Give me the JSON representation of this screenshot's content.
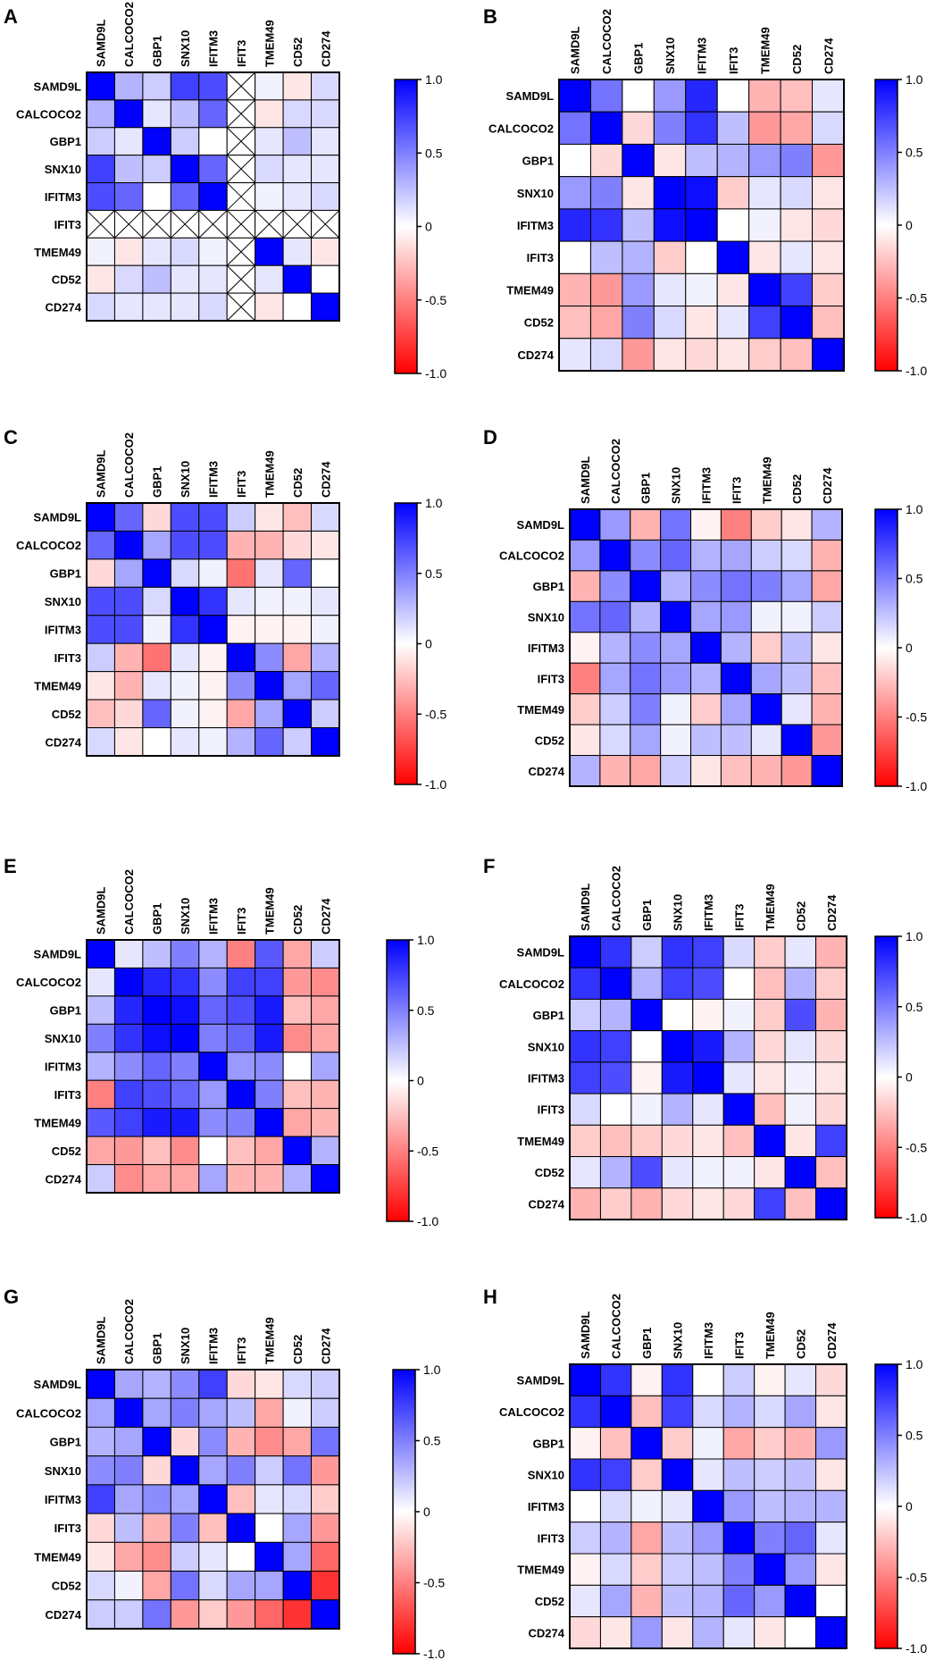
{
  "genes": [
    "SAMD9L",
    "CALCOCO2",
    "GBP1",
    "SNX10",
    "IFITM3",
    "IFIT3",
    "TMEM49",
    "CD52",
    "CD274"
  ],
  "colorbar": {
    "ticks": [
      "1.0",
      "0.5",
      "0",
      "-0.5",
      "-1.0"
    ],
    "colors": {
      "max": "#0000ff",
      "mid": "#ffffff",
      "min": "#ff0000"
    }
  },
  "chart_data": [
    {
      "type": "heatmap",
      "panel": "A",
      "rows": [
        "SAMD9L",
        "CALCOCO2",
        "GBP1",
        "SNX10",
        "IFITM3",
        "IFIT3",
        "TMEM49",
        "CD52",
        "CD274"
      ],
      "columns": [
        "SAMD9L",
        "CALCOCO2",
        "GBP1",
        "SNX10",
        "IFITM3",
        "IFIT3",
        "TMEM49",
        "CD52",
        "CD274"
      ],
      "missing": "IFIT3",
      "values": [
        [
          1.0,
          0.3,
          0.2,
          0.75,
          0.7,
          null,
          0.05,
          -0.1,
          0.15
        ],
        [
          0.3,
          1.0,
          0.1,
          0.25,
          0.6,
          null,
          -0.1,
          0.15,
          0.15
        ],
        [
          0.2,
          0.1,
          1.0,
          0.2,
          0.0,
          null,
          0.1,
          0.25,
          0.1
        ],
        [
          0.75,
          0.25,
          0.2,
          1.0,
          0.6,
          null,
          0.15,
          0.1,
          0.1
        ],
        [
          0.7,
          0.6,
          0.0,
          0.6,
          1.0,
          null,
          0.05,
          0.1,
          0.15
        ],
        [
          null,
          null,
          null,
          null,
          null,
          null,
          null,
          null,
          null
        ],
        [
          0.05,
          -0.1,
          0.1,
          0.15,
          0.05,
          null,
          1.0,
          0.1,
          -0.1
        ],
        [
          -0.1,
          0.15,
          0.25,
          0.1,
          0.1,
          null,
          0.1,
          1.0,
          0.0
        ],
        [
          0.15,
          0.1,
          0.1,
          0.1,
          0.15,
          null,
          -0.1,
          0.0,
          1.0
        ]
      ]
    },
    {
      "type": "heatmap",
      "panel": "B",
      "rows": [
        "SAMD9L",
        "CALCOCO2",
        "GBP1",
        "SNX10",
        "IFITM3",
        "IFIT3",
        "TMEM49",
        "CD52",
        "CD274"
      ],
      "columns": [
        "SAMD9L",
        "CALCOCO2",
        "GBP1",
        "SNX10",
        "IFITM3",
        "IFIT3",
        "TMEM49",
        "CD52",
        "CD274"
      ],
      "values": [
        [
          1.0,
          0.55,
          0.0,
          0.4,
          0.85,
          0.0,
          -0.3,
          -0.25,
          0.1
        ],
        [
          0.55,
          1.0,
          -0.15,
          0.5,
          0.8,
          0.25,
          -0.4,
          -0.35,
          0.15
        ],
        [
          0.0,
          -0.15,
          1.0,
          -0.1,
          0.25,
          0.3,
          0.4,
          0.5,
          -0.4
        ],
        [
          0.4,
          0.5,
          -0.1,
          1.0,
          0.95,
          -0.2,
          0.1,
          0.15,
          -0.1
        ],
        [
          0.85,
          0.8,
          0.25,
          0.95,
          1.0,
          0.0,
          0.05,
          -0.1,
          -0.15
        ],
        [
          0.0,
          0.25,
          0.3,
          -0.2,
          0.0,
          1.0,
          -0.1,
          0.1,
          -0.1
        ],
        [
          -0.3,
          -0.4,
          0.4,
          0.1,
          0.05,
          -0.1,
          1.0,
          0.75,
          -0.2
        ],
        [
          -0.25,
          -0.35,
          0.5,
          0.15,
          -0.1,
          0.1,
          0.75,
          1.0,
          -0.25
        ],
        [
          0.1,
          0.15,
          -0.4,
          -0.1,
          -0.15,
          -0.1,
          -0.2,
          -0.25,
          1.0
        ]
      ]
    },
    {
      "type": "heatmap",
      "panel": "C",
      "rows": [
        "SAMD9L",
        "CALCOCO2",
        "GBP1",
        "SNX10",
        "IFITM3",
        "IFIT3",
        "TMEM49",
        "CD52",
        "CD274"
      ],
      "columns": [
        "SAMD9L",
        "CALCOCO2",
        "GBP1",
        "SNX10",
        "IFITM3",
        "IFIT3",
        "TMEM49",
        "CD52",
        "CD274"
      ],
      "values": [
        [
          1.0,
          0.6,
          -0.15,
          0.7,
          0.7,
          0.2,
          -0.1,
          -0.25,
          0.15
        ],
        [
          0.6,
          1.0,
          0.35,
          0.7,
          0.7,
          -0.3,
          -0.3,
          -0.15,
          -0.1
        ],
        [
          -0.15,
          0.35,
          1.0,
          0.15,
          0.05,
          -0.55,
          0.1,
          0.6,
          0.0
        ],
        [
          0.7,
          0.7,
          0.15,
          1.0,
          0.8,
          0.1,
          0.05,
          0.05,
          0.1
        ],
        [
          0.7,
          0.7,
          0.05,
          0.8,
          1.0,
          -0.05,
          -0.05,
          -0.05,
          0.05
        ],
        [
          0.2,
          -0.3,
          -0.55,
          0.1,
          -0.05,
          1.0,
          0.45,
          -0.35,
          0.3
        ],
        [
          -0.1,
          -0.3,
          0.1,
          0.05,
          -0.05,
          0.45,
          1.0,
          0.35,
          0.6
        ],
        [
          -0.25,
          -0.15,
          0.6,
          0.05,
          -0.05,
          -0.35,
          0.35,
          1.0,
          0.2
        ],
        [
          0.15,
          -0.1,
          0.0,
          0.1,
          0.05,
          0.3,
          0.6,
          0.2,
          1.0
        ]
      ]
    },
    {
      "type": "heatmap",
      "panel": "D",
      "rows": [
        "SAMD9L",
        "CALCOCO2",
        "GBP1",
        "SNX10",
        "IFITM3",
        "IFIT3",
        "TMEM49",
        "CD52",
        "CD274"
      ],
      "columns": [
        "SAMD9L",
        "CALCOCO2",
        "GBP1",
        "SNX10",
        "IFITM3",
        "IFIT3",
        "TMEM49",
        "CD52",
        "CD274"
      ],
      "values": [
        [
          1.0,
          0.4,
          -0.3,
          0.55,
          -0.05,
          -0.5,
          -0.2,
          -0.1,
          0.3
        ],
        [
          0.4,
          1.0,
          0.45,
          0.6,
          0.3,
          0.35,
          0.2,
          0.15,
          -0.3
        ],
        [
          -0.3,
          0.45,
          1.0,
          0.3,
          0.45,
          0.55,
          0.5,
          0.35,
          -0.35
        ],
        [
          0.55,
          0.6,
          0.3,
          1.0,
          0.35,
          0.4,
          0.05,
          0.05,
          0.2
        ],
        [
          -0.05,
          0.3,
          0.45,
          0.35,
          1.0,
          0.3,
          -0.2,
          0.25,
          -0.1
        ],
        [
          -0.5,
          0.35,
          0.55,
          0.4,
          0.3,
          1.0,
          0.35,
          0.25,
          -0.25
        ],
        [
          -0.2,
          0.2,
          0.5,
          0.05,
          -0.2,
          0.35,
          1.0,
          0.1,
          -0.3
        ],
        [
          -0.1,
          0.15,
          0.35,
          0.05,
          0.25,
          0.25,
          0.1,
          1.0,
          -0.4
        ],
        [
          0.3,
          -0.3,
          -0.35,
          0.2,
          -0.1,
          -0.25,
          -0.3,
          -0.4,
          1.0
        ]
      ]
    },
    {
      "type": "heatmap",
      "panel": "E",
      "rows": [
        "SAMD9L",
        "CALCOCO2",
        "GBP1",
        "SNX10",
        "IFITM3",
        "IFIT3",
        "TMEM49",
        "CD52",
        "CD274"
      ],
      "columns": [
        "SAMD9L",
        "CALCOCO2",
        "GBP1",
        "SNX10",
        "IFITM3",
        "IFIT3",
        "TMEM49",
        "CD52",
        "CD274"
      ],
      "values": [
        [
          1.0,
          0.1,
          0.25,
          0.5,
          0.3,
          -0.5,
          0.65,
          -0.35,
          0.2
        ],
        [
          0.1,
          1.0,
          0.85,
          0.8,
          0.45,
          0.75,
          0.75,
          -0.4,
          -0.45
        ],
        [
          0.25,
          0.85,
          1.0,
          0.95,
          0.6,
          0.7,
          0.9,
          -0.25,
          -0.35
        ],
        [
          0.5,
          0.8,
          0.95,
          1.0,
          0.5,
          0.6,
          0.9,
          -0.45,
          -0.35
        ],
        [
          0.3,
          0.45,
          0.6,
          0.5,
          1.0,
          0.4,
          0.45,
          0.0,
          0.35
        ],
        [
          -0.5,
          0.75,
          0.7,
          0.6,
          0.4,
          1.0,
          0.5,
          -0.25,
          -0.3
        ],
        [
          0.65,
          0.75,
          0.9,
          0.9,
          0.45,
          0.5,
          1.0,
          -0.35,
          -0.3
        ],
        [
          -0.35,
          -0.4,
          -0.25,
          -0.45,
          0.0,
          -0.25,
          -0.35,
          1.0,
          0.3
        ],
        [
          0.2,
          -0.45,
          -0.35,
          -0.35,
          0.35,
          -0.3,
          -0.3,
          0.3,
          1.0
        ]
      ]
    },
    {
      "type": "heatmap",
      "panel": "F",
      "rows": [
        "SAMD9L",
        "CALCOCO2",
        "GBP1",
        "SNX10",
        "IFITM3",
        "IFIT3",
        "TMEM49",
        "CD52",
        "CD274"
      ],
      "columns": [
        "SAMD9L",
        "CALCOCO2",
        "GBP1",
        "SNX10",
        "IFITM3",
        "IFIT3",
        "TMEM49",
        "CD52",
        "CD274"
      ],
      "values": [
        [
          1.0,
          0.8,
          0.2,
          0.8,
          0.75,
          0.15,
          -0.2,
          0.1,
          -0.3
        ],
        [
          0.8,
          1.0,
          0.3,
          0.75,
          0.7,
          0.0,
          -0.25,
          0.3,
          -0.2
        ],
        [
          0.2,
          0.3,
          1.0,
          0.0,
          -0.05,
          0.05,
          -0.2,
          0.7,
          -0.3
        ],
        [
          0.8,
          0.75,
          0.0,
          1.0,
          0.9,
          0.3,
          -0.15,
          0.1,
          -0.15
        ],
        [
          0.75,
          0.7,
          -0.05,
          0.9,
          1.0,
          0.1,
          -0.1,
          0.05,
          -0.1
        ],
        [
          0.15,
          0.0,
          0.05,
          0.3,
          0.1,
          1.0,
          -0.25,
          0.05,
          -0.15
        ],
        [
          -0.2,
          -0.25,
          -0.2,
          -0.15,
          -0.1,
          -0.25,
          1.0,
          -0.1,
          0.75
        ],
        [
          0.1,
          0.3,
          0.7,
          0.1,
          0.05,
          0.05,
          -0.1,
          1.0,
          -0.25
        ],
        [
          -0.3,
          -0.2,
          -0.3,
          -0.15,
          -0.1,
          -0.15,
          0.75,
          -0.25,
          1.0
        ]
      ]
    },
    {
      "type": "heatmap",
      "panel": "G",
      "rows": [
        "SAMD9L",
        "CALCOCO2",
        "GBP1",
        "SNX10",
        "IFITM3",
        "IFIT3",
        "TMEM49",
        "CD52",
        "CD274"
      ],
      "columns": [
        "SAMD9L",
        "CALCOCO2",
        "GBP1",
        "SNX10",
        "IFITM3",
        "IFIT3",
        "TMEM49",
        "CD52",
        "CD274"
      ],
      "values": [
        [
          1.0,
          0.35,
          0.3,
          0.45,
          0.75,
          -0.15,
          -0.1,
          0.15,
          0.2
        ],
        [
          0.35,
          1.0,
          0.35,
          0.5,
          0.35,
          0.25,
          -0.35,
          0.05,
          0.2
        ],
        [
          0.3,
          0.35,
          1.0,
          -0.15,
          0.45,
          -0.3,
          -0.45,
          -0.35,
          0.55
        ],
        [
          0.45,
          0.5,
          -0.15,
          1.0,
          0.35,
          0.5,
          0.2,
          0.55,
          -0.4
        ],
        [
          0.75,
          0.35,
          0.45,
          0.35,
          1.0,
          -0.25,
          0.1,
          0.15,
          -0.2
        ],
        [
          -0.15,
          0.25,
          -0.3,
          0.5,
          -0.25,
          1.0,
          0.0,
          0.35,
          -0.4
        ],
        [
          -0.1,
          -0.35,
          -0.45,
          0.2,
          0.1,
          0.0,
          1.0,
          0.35,
          -0.6
        ],
        [
          0.15,
          0.05,
          -0.35,
          0.55,
          0.15,
          0.35,
          0.35,
          1.0,
          -0.8
        ],
        [
          0.2,
          0.2,
          0.55,
          -0.4,
          -0.2,
          -0.4,
          -0.6,
          -0.8,
          1.0
        ]
      ]
    },
    {
      "type": "heatmap",
      "panel": "H",
      "rows": [
        "SAMD9L",
        "CALCOCO2",
        "GBP1",
        "SNX10",
        "IFITM3",
        "IFIT3",
        "TMEM49",
        "CD52",
        "CD274"
      ],
      "columns": [
        "SAMD9L",
        "CALCOCO2",
        "GBP1",
        "SNX10",
        "IFITM3",
        "IFIT3",
        "TMEM49",
        "CD52",
        "CD274"
      ],
      "values": [
        [
          1.0,
          0.8,
          -0.05,
          0.8,
          0.0,
          0.2,
          -0.05,
          0.1,
          -0.15
        ],
        [
          0.8,
          1.0,
          -0.25,
          0.75,
          0.15,
          0.3,
          0.15,
          0.35,
          -0.1
        ],
        [
          -0.05,
          -0.25,
          1.0,
          -0.2,
          0.05,
          -0.35,
          -0.2,
          -0.3,
          0.4
        ],
        [
          0.8,
          0.75,
          -0.2,
          1.0,
          0.1,
          0.25,
          0.2,
          0.25,
          -0.1
        ],
        [
          0.0,
          0.15,
          0.05,
          0.1,
          1.0,
          0.4,
          0.25,
          0.3,
          0.3
        ],
        [
          0.2,
          0.3,
          -0.35,
          0.25,
          0.4,
          1.0,
          0.5,
          0.6,
          0.1
        ],
        [
          -0.05,
          0.15,
          -0.2,
          0.2,
          0.25,
          0.5,
          1.0,
          0.4,
          -0.1
        ],
        [
          0.1,
          0.35,
          -0.3,
          0.25,
          0.3,
          0.6,
          0.4,
          1.0,
          0.0
        ],
        [
          -0.15,
          -0.1,
          0.4,
          -0.1,
          0.3,
          0.1,
          -0.1,
          0.0,
          1.0
        ]
      ]
    }
  ]
}
